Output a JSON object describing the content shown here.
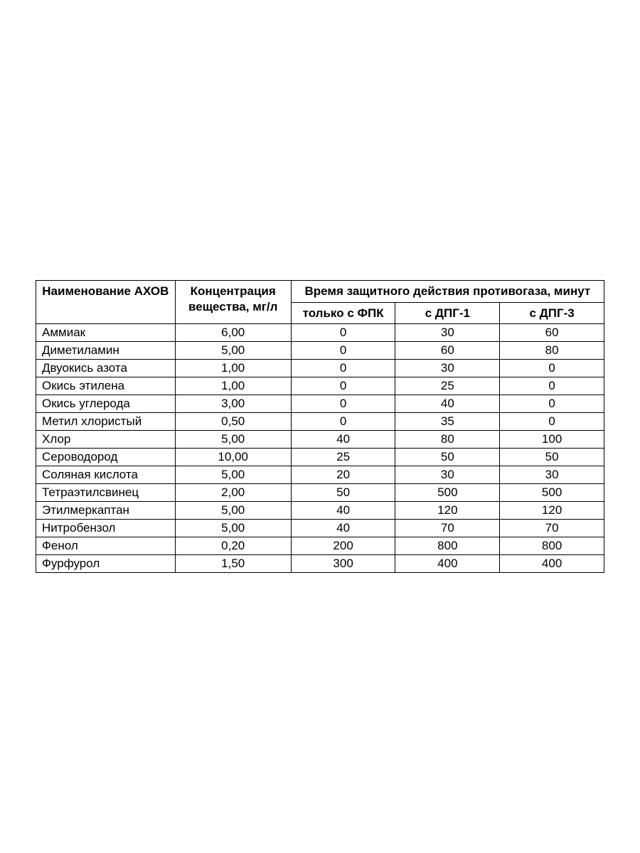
{
  "table": {
    "type": "table",
    "background_color": "#ffffff",
    "border_color": "#000000",
    "text_color": "#000000",
    "font_family": "Arial",
    "header_fontsize": 17,
    "cell_fontsize": 17,
    "column_widths_percent": [
      24,
      20,
      18,
      18,
      18
    ],
    "headers": {
      "name": "Наименование АХОВ",
      "concentration": "Концентрация вещества, мг/л",
      "protection_time_group": "Время защитного действия противогаза, минут",
      "fpk_only": "только с ФПК",
      "dpg1": "с ДПГ-1",
      "dpg3": "с ДПГ-3"
    },
    "rows": [
      {
        "name": "Аммиак",
        "conc": "6,00",
        "fpk": "0",
        "dpg1": "30",
        "dpg3": "60"
      },
      {
        "name": "Диметиламин",
        "conc": "5,00",
        "fpk": "0",
        "dpg1": "60",
        "dpg3": "80"
      },
      {
        "name": "Двуокись азота",
        "conc": "1,00",
        "fpk": "0",
        "dpg1": "30",
        "dpg3": "0"
      },
      {
        "name": "Окись этилена",
        "conc": "1,00",
        "fpk": "0",
        "dpg1": "25",
        "dpg3": "0"
      },
      {
        "name": "Окись углерода",
        "conc": "3,00",
        "fpk": "0",
        "dpg1": "40",
        "dpg3": "0"
      },
      {
        "name": "Метил хлористый",
        "conc": "0,50",
        "fpk": "0",
        "dpg1": "35",
        "dpg3": "0"
      },
      {
        "name": "Хлор",
        "conc": "5,00",
        "fpk": "40",
        "dpg1": "80",
        "dpg3": "100"
      },
      {
        "name": "Сероводород",
        "conc": "10,00",
        "fpk": "25",
        "dpg1": "50",
        "dpg3": "50"
      },
      {
        "name": "Соляная кислота",
        "conc": "5,00",
        "fpk": "20",
        "dpg1": "30",
        "dpg3": "30"
      },
      {
        "name": "Тетраэтилсвинец",
        "conc": "2,00",
        "fpk": "50",
        "dpg1": "500",
        "dpg3": "500"
      },
      {
        "name": "Этилмеркаптан",
        "conc": "5,00",
        "fpk": "40",
        "dpg1": "120",
        "dpg3": "120"
      },
      {
        "name": "Нитробензол",
        "conc": "5,00",
        "fpk": "40",
        "dpg1": "70",
        "dpg3": "70"
      },
      {
        "name": "Фенол",
        "conc": "0,20",
        "fpk": "200",
        "dpg1": "800",
        "dpg3": "800"
      },
      {
        "name": "Фурфурол",
        "conc": "1,50",
        "fpk": "300",
        "dpg1": "400",
        "dpg3": "400"
      }
    ]
  }
}
